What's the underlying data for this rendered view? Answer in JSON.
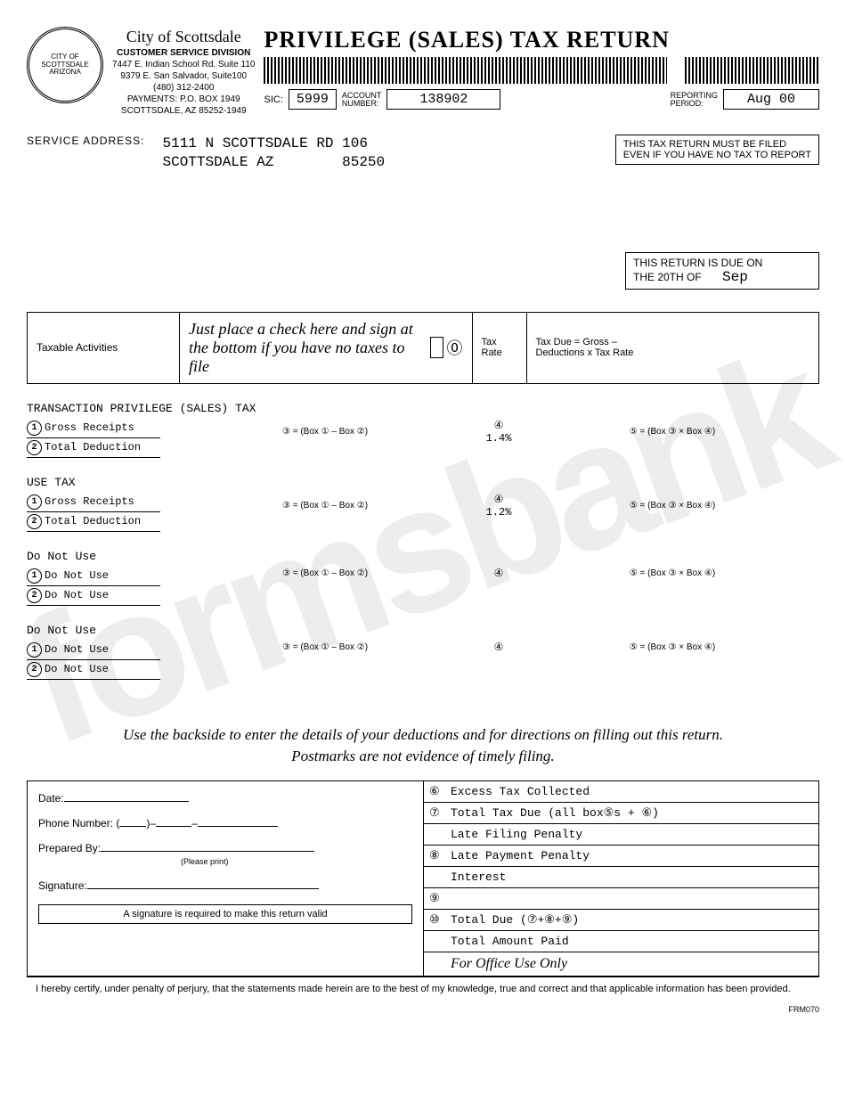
{
  "watermark": "formsbank",
  "header": {
    "city": "City of Scottsdale",
    "division": "CUSTOMER SERVICE DIVISION",
    "addr1": "7447 E. Indian School Rd. Suite 110",
    "addr2": "9379 E. San Salvador, Suite100",
    "phone": "(480) 312-2400",
    "payments": "PAYMENTS:   P.O. BOX 1949",
    "cityzip": "SCOTTSDALE, AZ 85252-1949",
    "title": "PRIVILEGE (SALES) TAX RETURN",
    "sic_lbl": "SIC:",
    "sic": "5999",
    "acct_lbl": "ACCOUNT\nNUMBER:",
    "acct": "138902",
    "period_lbl": "REPORTING\nPERIOD:",
    "period": "Aug 00"
  },
  "service": {
    "lbl": "SERVICE ADDRESS:",
    "line1": "5111 N SCOTTSDALE RD 106",
    "line2": "SCOTTSDALE AZ",
    "zip": "85250"
  },
  "notice": "THIS TAX RETURN MUST BE FILED\nEVEN IF YOU HAVE NO TAX TO REPORT",
  "due": {
    "text": "THIS RETURN IS DUE ON\nTHE 20TH OF",
    "month": "Sep"
  },
  "band": {
    "ta": "Taxable Activities",
    "inst": "Just place a check here and sign at the bottom if you have no taxes to file",
    "zero": "⓪",
    "tax_rate": "Tax\nRate",
    "formula": "Tax Due = Gross –\nDeductions x Tax Rate"
  },
  "sections": [
    {
      "title": "TRANSACTION PRIVILEGE (SALES) TAX",
      "l1": "Gross Receipts",
      "l2": "Total Deduction",
      "rate": "1.4%"
    },
    {
      "title": "USE TAX",
      "l1": "Gross Receipts",
      "l2": "Total Deduction",
      "rate": "1.2%"
    },
    {
      "title": "Do Not Use",
      "l1": "Do Not Use",
      "l2": "Do Not Use",
      "rate": ""
    },
    {
      "title": "Do Not Use",
      "l1": "Do Not Use",
      "l2": "Do Not Use",
      "rate": ""
    }
  ],
  "formulas": {
    "three": "③ = (Box ① – Box ②)",
    "four": "④",
    "five": "⑤ = (Box ③ × Box ④)"
  },
  "midnote": "Use the backside to enter the details of your deductions and for directions on filling out this return.\nPostmarks are not evidence of timely filing.",
  "sig": {
    "date": "Date:",
    "phone": "Phone Number: (",
    "prep": "Prepared By:",
    "prep_hint": "(Please print)",
    "sig": "Signature:",
    "req": "A signature is required to make this return valid"
  },
  "totals": [
    {
      "n": "⑥",
      "t": "Excess Tax Collected"
    },
    {
      "n": "⑦",
      "t": "Total Tax Due (all box⑤s + ⑥)"
    },
    {
      "n": "",
      "t": "Late Filing Penalty"
    },
    {
      "n": "⑧",
      "t": "Late Payment Penalty"
    },
    {
      "n": "",
      "t": "Interest"
    },
    {
      "n": "⑨",
      "t": ""
    },
    {
      "n": "⑩",
      "t": "Total Due (⑦+⑧+⑨)"
    },
    {
      "n": "",
      "t": "Total Amount Paid"
    }
  ],
  "office": "For Office Use Only",
  "cert": "I hereby certify, under penalty of perjury, that the statements made herein are to the best of my knowledge, true and correct and that applicable information has been provided.",
  "formno": "FRM070"
}
